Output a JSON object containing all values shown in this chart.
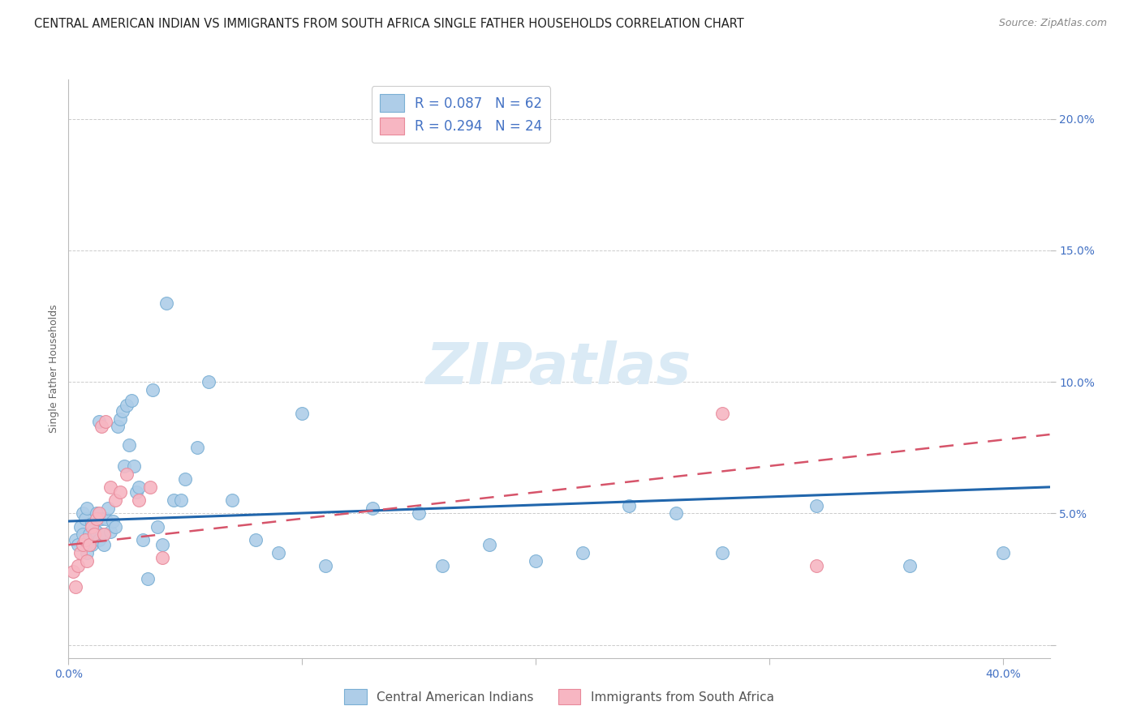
{
  "title": "CENTRAL AMERICAN INDIAN VS IMMIGRANTS FROM SOUTH AFRICA SINGLE FATHER HOUSEHOLDS CORRELATION CHART",
  "source": "Source: ZipAtlas.com",
  "ylabel": "Single Father Households",
  "ytick_labels": [
    "",
    "5.0%",
    "10.0%",
    "15.0%",
    "20.0%"
  ],
  "ytick_values": [
    0.0,
    0.05,
    0.1,
    0.15,
    0.2
  ],
  "xlim": [
    0.0,
    0.42
  ],
  "ylim": [
    -0.005,
    0.215
  ],
  "legend_r1": "R = 0.087   N = 62",
  "legend_r2": "R = 0.294   N = 24",
  "series1_color": "#aecde8",
  "series1_edge_color": "#7aafd4",
  "series1_line_color": "#2166ac",
  "series2_color": "#f7b6c2",
  "series2_edge_color": "#e8899a",
  "series2_line_color": "#d6546a",
  "background_color": "#ffffff",
  "watermark": "ZIPatlas",
  "blue_scatter_x": [
    0.003,
    0.004,
    0.005,
    0.006,
    0.006,
    0.007,
    0.008,
    0.008,
    0.009,
    0.01,
    0.01,
    0.011,
    0.012,
    0.012,
    0.013,
    0.013,
    0.014,
    0.015,
    0.015,
    0.016,
    0.017,
    0.018,
    0.019,
    0.02,
    0.021,
    0.022,
    0.023,
    0.024,
    0.025,
    0.026,
    0.027,
    0.028,
    0.029,
    0.03,
    0.032,
    0.034,
    0.036,
    0.038,
    0.04,
    0.042,
    0.045,
    0.048,
    0.055,
    0.06,
    0.07,
    0.08,
    0.09,
    0.11,
    0.13,
    0.16,
    0.2,
    0.24,
    0.28,
    0.32,
    0.36,
    0.4,
    0.05,
    0.1,
    0.15,
    0.18,
    0.22,
    0.26
  ],
  "blue_scatter_y": [
    0.04,
    0.038,
    0.045,
    0.042,
    0.05,
    0.048,
    0.052,
    0.035,
    0.042,
    0.046,
    0.038,
    0.044,
    0.043,
    0.05,
    0.04,
    0.085,
    0.048,
    0.042,
    0.038,
    0.048,
    0.052,
    0.043,
    0.047,
    0.045,
    0.083,
    0.086,
    0.089,
    0.068,
    0.091,
    0.076,
    0.093,
    0.068,
    0.058,
    0.06,
    0.04,
    0.025,
    0.097,
    0.045,
    0.038,
    0.13,
    0.055,
    0.055,
    0.075,
    0.1,
    0.055,
    0.04,
    0.035,
    0.03,
    0.052,
    0.03,
    0.032,
    0.053,
    0.035,
    0.053,
    0.03,
    0.035,
    0.063,
    0.088,
    0.05,
    0.038,
    0.035,
    0.05
  ],
  "pink_scatter_x": [
    0.002,
    0.003,
    0.004,
    0.005,
    0.006,
    0.007,
    0.008,
    0.009,
    0.01,
    0.011,
    0.012,
    0.013,
    0.014,
    0.015,
    0.016,
    0.018,
    0.02,
    0.022,
    0.025,
    0.03,
    0.035,
    0.04,
    0.28,
    0.32
  ],
  "pink_scatter_y": [
    0.028,
    0.022,
    0.03,
    0.035,
    0.038,
    0.04,
    0.032,
    0.038,
    0.045,
    0.042,
    0.048,
    0.05,
    0.083,
    0.042,
    0.085,
    0.06,
    0.055,
    0.058,
    0.065,
    0.055,
    0.06,
    0.033,
    0.088,
    0.03
  ],
  "blue_trend_x": [
    0.0,
    0.42
  ],
  "blue_trend_y": [
    0.047,
    0.06
  ],
  "pink_trend_x": [
    0.0,
    0.42
  ],
  "pink_trend_y": [
    0.038,
    0.08
  ],
  "title_fontsize": 10.5,
  "source_fontsize": 9,
  "axis_label_fontsize": 9,
  "tick_fontsize": 10,
  "legend_fontsize": 12,
  "watermark_fontsize": 52,
  "watermark_color": "#daeaf5",
  "axis_color": "#4472c4",
  "grid_color": "#cccccc",
  "spine_color": "#bbbbbb"
}
